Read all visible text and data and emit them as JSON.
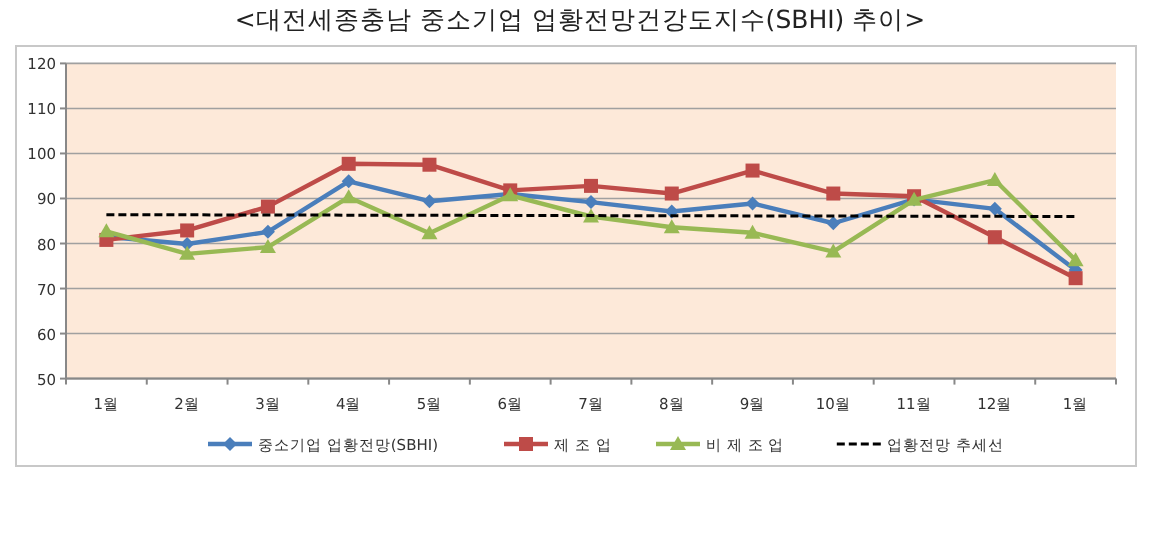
{
  "chart_data": {
    "type": "line",
    "title": "<대전세종충남 중소기업 업황전망건강도지수(SBHI) 추이>",
    "categories": [
      "1월",
      "2월",
      "3월",
      "4월",
      "5월",
      "6월",
      "7월",
      "8월",
      "9월",
      "10월",
      "11월",
      "12월",
      "1월"
    ],
    "ylim": [
      50,
      120
    ],
    "yticks": [
      50,
      60,
      70,
      80,
      90,
      100,
      110,
      120
    ],
    "grid": "y",
    "legend": "bottom",
    "series": [
      {
        "name": "중소기업 업황전망(SBHI)",
        "color": "#4a7ebb",
        "marker": "diamond",
        "values": [
          81.5,
          79.9,
          82.6,
          93.8,
          89.4,
          91.0,
          89.2,
          87.1,
          88.9,
          84.5,
          89.8,
          87.7,
          74.1
        ]
      },
      {
        "name": "제 조 업",
        "color": "#be4b48",
        "marker": "square",
        "values": [
          80.8,
          82.9,
          88.2,
          97.7,
          97.5,
          91.8,
          92.8,
          91.1,
          96.2,
          91.1,
          90.5,
          81.4,
          72.3
        ]
      },
      {
        "name": "비 제 조 업",
        "color": "#98b954",
        "marker": "triangle",
        "values": [
          82.7,
          77.7,
          79.2,
          90.3,
          82.3,
          90.7,
          86.0,
          83.6,
          82.4,
          78.2,
          89.7,
          94.1,
          76.3
        ]
      },
      {
        "name": "업황전망 추세선",
        "color": "#000000",
        "marker": "none",
        "line_style": "dashed",
        "values": [
          86.4,
          null,
          null,
          null,
          null,
          null,
          null,
          null,
          null,
          null,
          null,
          null,
          86.0
        ]
      }
    ]
  }
}
